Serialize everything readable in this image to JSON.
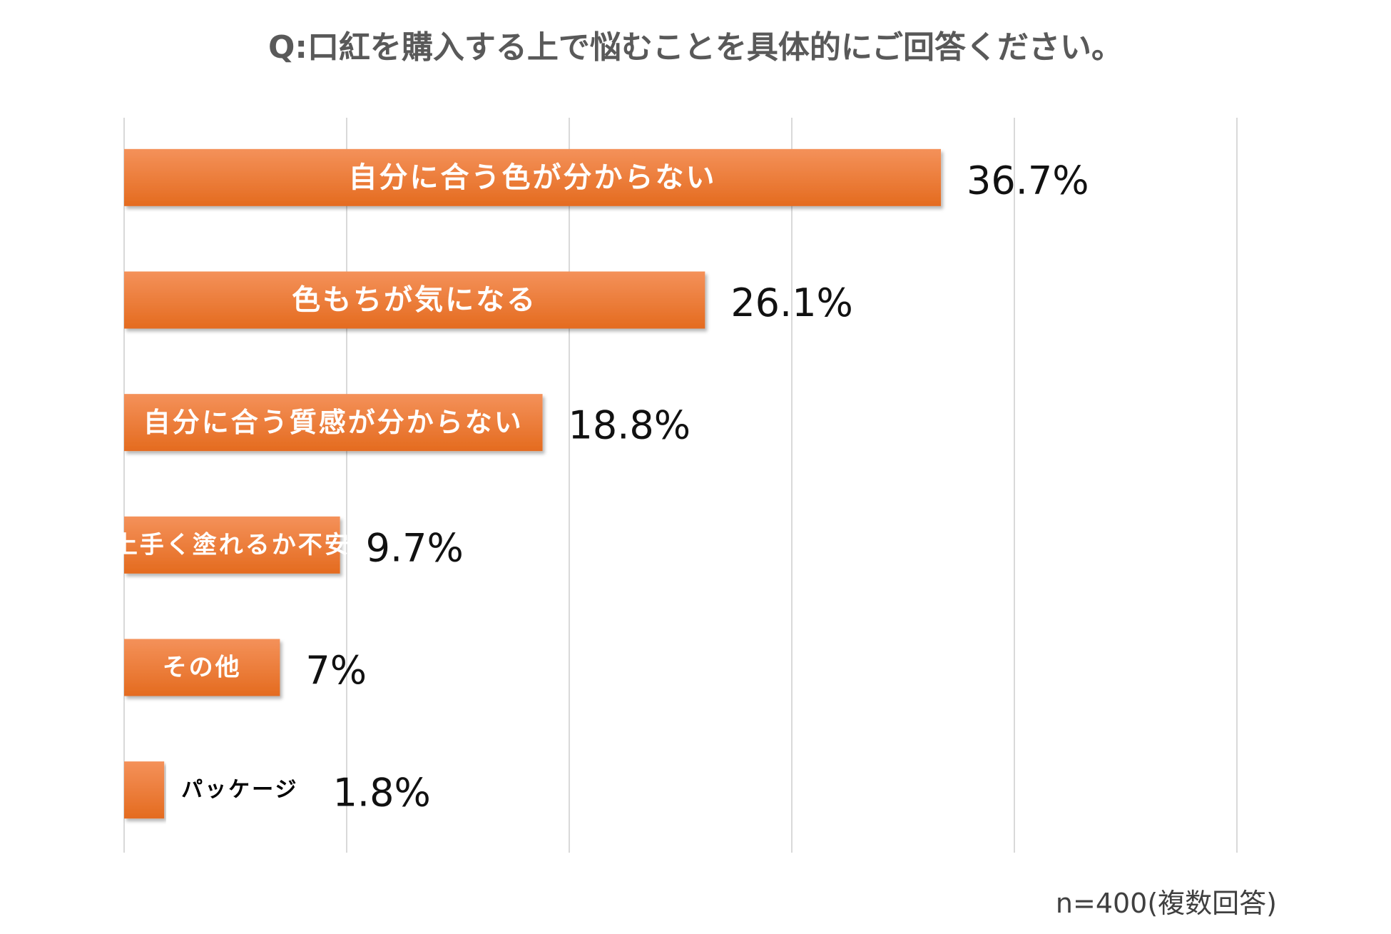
{
  "chart_data": {
    "type": "bar",
    "orientation": "horizontal",
    "title": "Q:口紅を購入する上で悩むことを具体的にご回答ください。",
    "categories": [
      "自分に合う色が分からない",
      "色もちが気になる",
      "自分に合う質感が分からない",
      "上手く塗れるか不安",
      "その他",
      "パッケージ"
    ],
    "values": [
      36.7,
      26.1,
      18.8,
      9.7,
      7,
      1.8
    ],
    "value_labels": [
      "36.7%",
      "26.1%",
      "18.8%",
      "9.7%",
      "7%",
      "1.8%"
    ],
    "xlim": [
      0,
      50
    ],
    "grid": true,
    "bar_color": "#ED7D31",
    "note": "n=400(複数回答)"
  }
}
